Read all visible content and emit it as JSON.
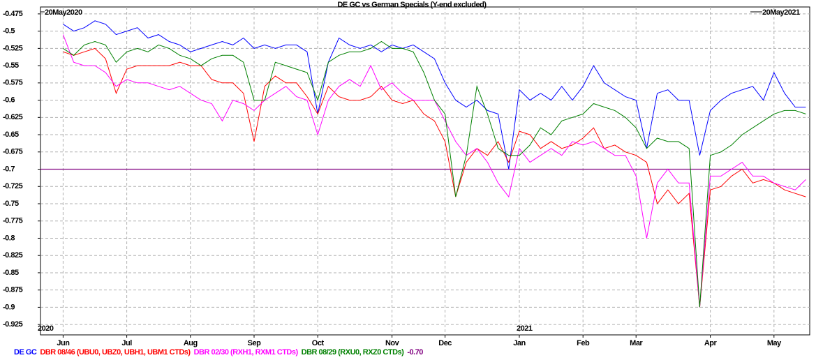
{
  "chart_data": {
    "type": "line",
    "title": "DE GC vs German Specials (Y-end excluded)",
    "range_labels": [
      "20May2020",
      "20May2021"
    ],
    "year_labels": [
      "2020",
      "2021"
    ],
    "categories": [
      null,
      null,
      "Jun",
      null,
      null,
      null,
      null,
      null,
      "Jul",
      null,
      null,
      null,
      null,
      null,
      "Aug",
      null,
      null,
      null,
      null,
      null,
      "Sep",
      null,
      null,
      null,
      null,
      null,
      "Oct",
      null,
      null,
      null,
      null,
      null,
      null,
      "Nov",
      null,
      null,
      null,
      null,
      "Dec",
      null,
      null,
      null,
      null,
      null,
      null,
      "Jan",
      null,
      null,
      null,
      null,
      null,
      "Feb",
      null,
      null,
      null,
      null,
      "Mar",
      null,
      null,
      null,
      null,
      null,
      null,
      "Apr",
      null,
      null,
      null,
      null,
      null,
      "May",
      null,
      null,
      null
    ],
    "series": [
      {
        "name": "DE GC",
        "color": "#0000ff",
        "values": [
          null,
          null,
          -0.49,
          -0.5,
          -0.495,
          -0.485,
          -0.49,
          -0.505,
          -0.5,
          -0.495,
          -0.51,
          -0.505,
          -0.515,
          -0.52,
          -0.53,
          -0.525,
          -0.52,
          -0.515,
          -0.52,
          -0.51,
          -0.525,
          -0.52,
          -0.525,
          -0.52,
          -0.52,
          -0.53,
          -0.62,
          -0.545,
          -0.51,
          -0.52,
          -0.525,
          -0.52,
          -0.53,
          -0.52,
          -0.525,
          -0.52,
          -0.53,
          -0.54,
          -0.575,
          -0.6,
          -0.61,
          -0.6,
          -0.615,
          -0.62,
          -0.7,
          -0.585,
          -0.6,
          -0.59,
          -0.6,
          -0.58,
          -0.6,
          -0.58,
          -0.55,
          -0.575,
          -0.585,
          -0.595,
          -0.6,
          -0.67,
          -0.59,
          -0.585,
          -0.6,
          -0.6,
          -0.68,
          -0.615,
          -0.6,
          -0.59,
          -0.585,
          -0.58,
          -0.6,
          -0.56,
          -0.59,
          -0.61,
          -0.61
        ]
      },
      {
        "name": "DBR 08/46 (UBU0, UBZ0, UBH1, UBM1 CTDs)",
        "color": "#ff0000",
        "values": [
          null,
          null,
          -0.53,
          -0.535,
          -0.53,
          -0.525,
          -0.54,
          -0.59,
          -0.555,
          -0.55,
          -0.55,
          -0.55,
          -0.55,
          -0.545,
          -0.55,
          -0.55,
          -0.57,
          -0.575,
          -0.575,
          -0.59,
          -0.66,
          -0.58,
          -0.565,
          -0.575,
          -0.575,
          -0.595,
          -0.62,
          -0.58,
          -0.595,
          -0.6,
          -0.6,
          -0.595,
          -0.58,
          -0.6,
          -0.605,
          -0.6,
          -0.62,
          -0.63,
          -0.66,
          -0.74,
          -0.69,
          -0.67,
          -0.68,
          -0.66,
          -0.69,
          -0.645,
          -0.65,
          -0.67,
          -0.66,
          -0.67,
          -0.665,
          -0.655,
          -0.64,
          -0.67,
          -0.665,
          -0.675,
          -0.68,
          -0.69,
          -0.75,
          -0.73,
          -0.75,
          -0.735,
          -0.9,
          -0.73,
          -0.725,
          -0.71,
          -0.7,
          -0.72,
          -0.715,
          -0.72,
          -0.73,
          -0.735,
          -0.74
        ]
      },
      {
        "name": "DBR 02/30 (RXH1, RXM1 CTDs)",
        "color": "#ff00ff",
        "values": [
          null,
          null,
          -0.505,
          -0.545,
          -0.55,
          -0.55,
          -0.56,
          -0.58,
          -0.57,
          -0.575,
          -0.575,
          -0.58,
          -0.585,
          -0.58,
          -0.59,
          -0.6,
          -0.605,
          -0.63,
          -0.6,
          -0.605,
          -0.615,
          -0.6,
          -0.59,
          -0.58,
          -0.595,
          -0.6,
          -0.65,
          -0.6,
          -0.58,
          -0.57,
          -0.58,
          -0.55,
          -0.585,
          -0.575,
          -0.59,
          -0.6,
          -0.6,
          -0.6,
          -0.63,
          -0.66,
          -0.68,
          -0.67,
          -0.69,
          -0.72,
          -0.74,
          -0.67,
          -0.69,
          -0.68,
          -0.67,
          -0.68,
          -0.66,
          -0.665,
          -0.66,
          -0.67,
          -0.68,
          -0.68,
          -0.71,
          -0.8,
          -0.72,
          -0.7,
          -0.72,
          -0.72,
          -0.9,
          -0.71,
          -0.71,
          -0.7,
          -0.69,
          -0.71,
          -0.71,
          -0.72,
          -0.725,
          -0.73,
          -0.715
        ]
      },
      {
        "name": "DBR 08/29 (RXU0, RXZ0 CTDs)",
        "color": "#008000",
        "values": [
          null,
          null,
          -0.525,
          -0.535,
          -0.52,
          -0.515,
          -0.52,
          -0.545,
          -0.53,
          -0.525,
          -0.53,
          -0.52,
          -0.525,
          -0.535,
          -0.54,
          -0.55,
          -0.54,
          -0.535,
          -0.535,
          -0.545,
          -0.6,
          -0.6,
          -0.545,
          -0.55,
          -0.555,
          -0.56,
          -0.6,
          -0.545,
          -0.535,
          -0.53,
          -0.53,
          -0.525,
          -0.515,
          -0.525,
          -0.525,
          -0.53,
          -0.56,
          -0.6,
          -0.62,
          -0.74,
          -0.68,
          -0.58,
          -0.62,
          -0.67,
          -0.68,
          -0.68,
          -0.665,
          -0.64,
          -0.65,
          -0.63,
          -0.625,
          -0.62,
          -0.605,
          -0.61,
          -0.615,
          -0.625,
          -0.64,
          -0.67,
          -0.655,
          -0.66,
          -0.66,
          -0.67,
          -0.9,
          -0.68,
          -0.675,
          -0.665,
          -0.65,
          -0.64,
          -0.63,
          -0.62,
          -0.615,
          -0.615,
          -0.62
        ]
      }
    ],
    "reference_line": {
      "name": "-0.70",
      "value": -0.7,
      "color": "#800080"
    },
    "ylim": [
      -0.94,
      -0.465
    ],
    "yticks": [
      -0.475,
      -0.5,
      -0.525,
      -0.55,
      -0.575,
      -0.6,
      -0.625,
      -0.65,
      -0.675,
      -0.7,
      -0.725,
      -0.75,
      -0.775,
      -0.8,
      -0.825,
      -0.85,
      -0.875,
      -0.9,
      -0.925
    ],
    "grid": true
  }
}
